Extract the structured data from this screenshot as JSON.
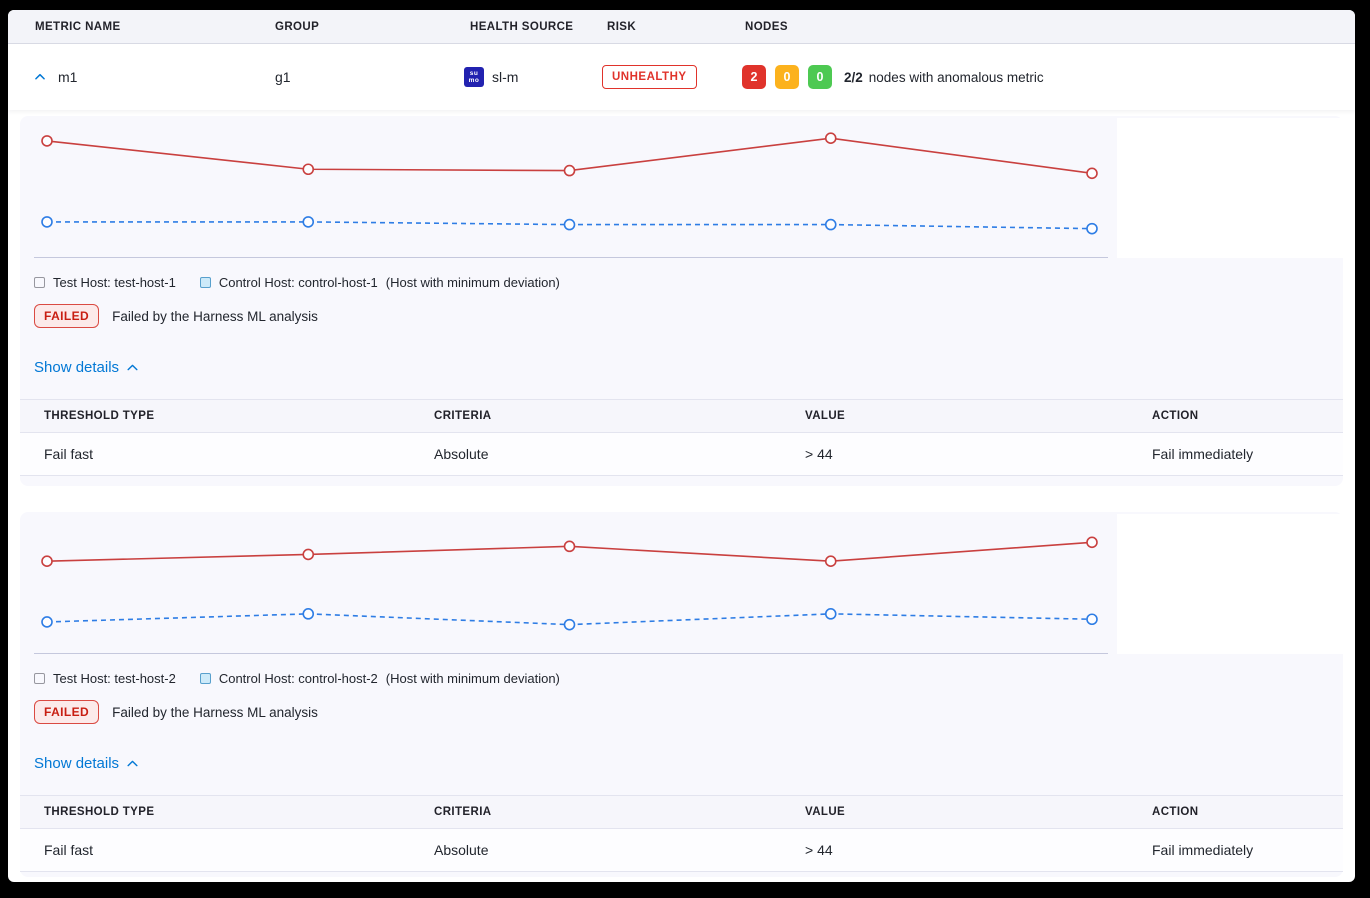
{
  "header": {
    "columns": [
      "METRIC NAME",
      "GROUP",
      "HEALTH SOURCE",
      "RISK",
      "NODES"
    ]
  },
  "metric_row": {
    "name": "m1",
    "group": "g1",
    "health_source": "sl-m",
    "health_source_icon": "sumo-logic-icon",
    "health_source_icon_lines": [
      "su",
      "mo"
    ],
    "risk_label": "UNHEALTHY",
    "nodes": {
      "counts": [
        {
          "value": "2",
          "color": "#e0332b",
          "status": "unhealthy"
        },
        {
          "value": "0",
          "color": "#fcb21d",
          "status": "observe"
        },
        {
          "value": "0",
          "color": "#4dc952",
          "status": "healthy"
        }
      ],
      "ratio": "2/2",
      "summary": "nodes with anomalous metric"
    }
  },
  "sections": [
    {
      "legend": {
        "test_label": "Test Host: test-host-1",
        "control_label": "Control Host: control-host-1",
        "note": "(Host with minimum deviation)"
      },
      "status": {
        "badge": "FAILED",
        "message": "Failed by the Harness ML analysis"
      },
      "details_toggle": "Show details",
      "threshold_table": {
        "columns": [
          "THRESHOLD TYPE",
          "CRITERIA",
          "VALUE",
          "ACTION"
        ],
        "rows": [
          [
            "Fail fast",
            "Absolute",
            "> 44",
            "Fail immediately"
          ]
        ]
      }
    },
    {
      "legend": {
        "test_label": "Test Host: test-host-2",
        "control_label": "Control Host: control-host-2",
        "note": "(Host with minimum deviation)"
      },
      "status": {
        "badge": "FAILED",
        "message": "Failed by the Harness ML analysis"
      },
      "details_toggle": "Show details",
      "threshold_table": {
        "columns": [
          "THRESHOLD TYPE",
          "CRITERIA",
          "VALUE",
          "ACTION"
        ],
        "rows": [
          [
            "Fail fast",
            "Absolute",
            "> 44",
            "Fail immediately"
          ]
        ]
      }
    }
  ],
  "colors": {
    "test_series": "#c9403f",
    "control_series": "#2e7de5",
    "link_blue": "#0278d5",
    "risk_red": "#e0332b"
  },
  "chart_data": [
    {
      "type": "line",
      "x": [
        1,
        2,
        3,
        4,
        5
      ],
      "ylim": [
        0,
        100
      ],
      "grid": false,
      "legend_position": "bottom",
      "series": [
        {
          "name": "Test Host: test-host-1",
          "color": "#c9403f",
          "style": "solid",
          "values": [
            86,
            65,
            64,
            88,
            62
          ]
        },
        {
          "name": "Control Host: control-host-1",
          "color": "#2e7de5",
          "style": "dashed",
          "values": [
            26,
            26,
            24,
            24,
            21
          ]
        }
      ]
    },
    {
      "type": "line",
      "x": [
        1,
        2,
        3,
        4,
        5
      ],
      "ylim": [
        0,
        100
      ],
      "grid": false,
      "legend_position": "bottom",
      "series": [
        {
          "name": "Test Host: test-host-2",
          "color": "#c9403f",
          "style": "solid",
          "values": [
            68,
            73,
            79,
            68,
            82
          ]
        },
        {
          "name": "Control Host: control-host-2",
          "color": "#2e7de5",
          "style": "dashed",
          "values": [
            23,
            29,
            21,
            29,
            25
          ]
        }
      ]
    }
  ]
}
